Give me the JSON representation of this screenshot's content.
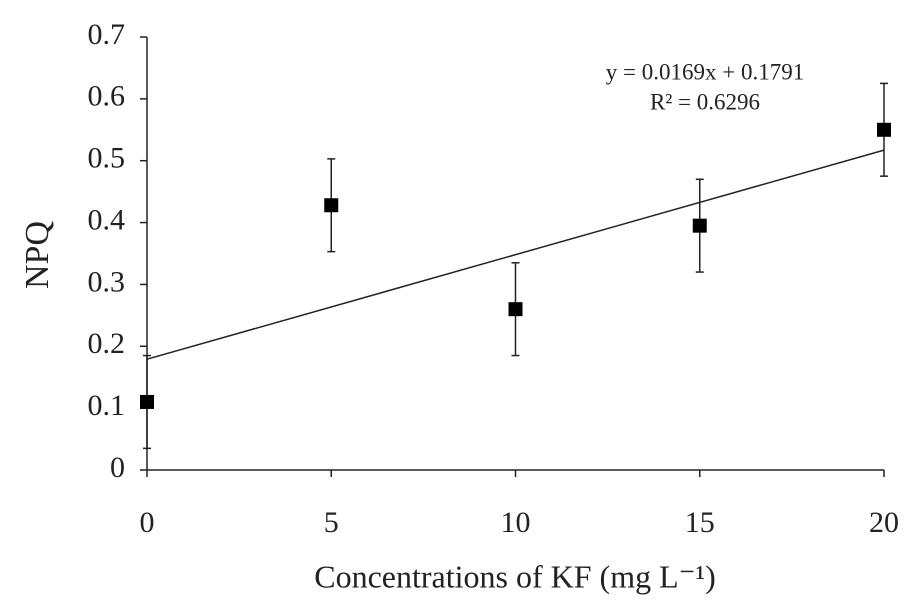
{
  "chart_data": {
    "type": "scatter",
    "x_label": "Concentrations of KF (mg L⁻¹)",
    "y_label": "NPQ",
    "x": [
      0,
      5,
      10,
      15,
      20
    ],
    "values": [
      0.11,
      0.428,
      0.26,
      0.395,
      0.55
    ],
    "errors": [
      0.075,
      0.075,
      0.075,
      0.075,
      0.075
    ],
    "color": "#000000",
    "trendline": {
      "slope": 0.0169,
      "intercept": 0.1791
    },
    "annotations": [
      "y = 0.0169x + 0.1791",
      "R² = 0.6296"
    ],
    "xlim": [
      0,
      20
    ],
    "xticks": [
      0,
      5,
      10,
      15,
      20
    ],
    "ylim": [
      0,
      0.7
    ],
    "yticks": [
      0,
      0.1,
      0.2,
      0.3,
      0.4,
      0.5,
      0.6,
      0.7
    ],
    "grid": false
  }
}
